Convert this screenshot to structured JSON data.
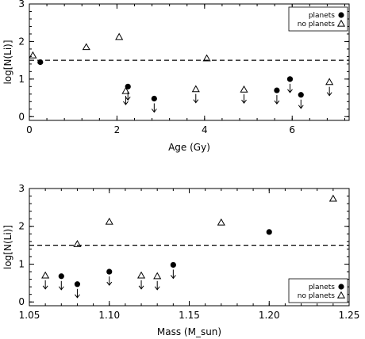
{
  "chart_data": [
    {
      "type": "scatter",
      "xlabel": "Age (Gy)",
      "ylabel": "log[N(Li)]",
      "xlim": [
        0,
        7.3
      ],
      "ylim": [
        -0.1,
        3
      ],
      "xticks": [
        0,
        2,
        4,
        6
      ],
      "yticks": [
        0,
        1,
        2,
        3
      ],
      "reference_line": {
        "y": 1.5,
        "style": "dashed"
      },
      "legend_position": "top-right",
      "series": [
        {
          "name": "planets",
          "marker": "filled-circle",
          "points": [
            {
              "x": 0.25,
              "y": 1.45,
              "upper_limit": false
            },
            {
              "x": 2.25,
              "y": 0.8,
              "upper_limit": true
            },
            {
              "x": 2.85,
              "y": 0.48,
              "upper_limit": true
            },
            {
              "x": 5.65,
              "y": 0.7,
              "upper_limit": true
            },
            {
              "x": 5.95,
              "y": 1.0,
              "upper_limit": true
            },
            {
              "x": 6.2,
              "y": 0.58,
              "upper_limit": true
            }
          ]
        },
        {
          "name": "no planets",
          "marker": "open-triangle",
          "points": [
            {
              "x": 0.08,
              "y": 1.63,
              "upper_limit": false
            },
            {
              "x": 1.3,
              "y": 1.85,
              "upper_limit": false
            },
            {
              "x": 2.05,
              "y": 2.12,
              "upper_limit": false
            },
            {
              "x": 2.2,
              "y": 0.68,
              "upper_limit": true
            },
            {
              "x": 3.8,
              "y": 0.73,
              "upper_limit": true
            },
            {
              "x": 4.05,
              "y": 1.55,
              "upper_limit": false
            },
            {
              "x": 4.9,
              "y": 0.72,
              "upper_limit": true
            },
            {
              "x": 6.85,
              "y": 0.92,
              "upper_limit": true
            }
          ]
        }
      ]
    },
    {
      "type": "scatter",
      "xlabel": "Mass (M_sun)",
      "ylabel": "log[N(Li)]",
      "xlim": [
        1.05,
        1.25
      ],
      "ylim": [
        -0.1,
        3
      ],
      "xticks": [
        1.05,
        1.1,
        1.15,
        1.2,
        1.25
      ],
      "xtick_labels": [
        "1.05",
        "1.10",
        "1.15",
        "1.20",
        "1.25"
      ],
      "yticks": [
        0,
        1,
        2,
        3
      ],
      "reference_line": {
        "y": 1.5,
        "style": "dashed"
      },
      "legend_position": "bottom-right",
      "series": [
        {
          "name": "planets",
          "marker": "filled-circle",
          "points": [
            {
              "x": 1.07,
              "y": 0.68,
              "upper_limit": true
            },
            {
              "x": 1.08,
              "y": 0.47,
              "upper_limit": true
            },
            {
              "x": 1.1,
              "y": 0.8,
              "upper_limit": true
            },
            {
              "x": 1.14,
              "y": 0.98,
              "upper_limit": true
            },
            {
              "x": 1.2,
              "y": 1.85,
              "upper_limit": false
            }
          ]
        },
        {
          "name": "no planets",
          "marker": "open-triangle",
          "points": [
            {
              "x": 1.06,
              "y": 0.7,
              "upper_limit": true
            },
            {
              "x": 1.08,
              "y": 1.53,
              "upper_limit": false
            },
            {
              "x": 1.1,
              "y": 2.12,
              "upper_limit": false
            },
            {
              "x": 1.12,
              "y": 0.7,
              "upper_limit": true
            },
            {
              "x": 1.13,
              "y": 0.68,
              "upper_limit": true
            },
            {
              "x": 1.17,
              "y": 2.1,
              "upper_limit": false
            },
            {
              "x": 1.24,
              "y": 2.73,
              "upper_limit": false
            }
          ]
        }
      ]
    }
  ]
}
